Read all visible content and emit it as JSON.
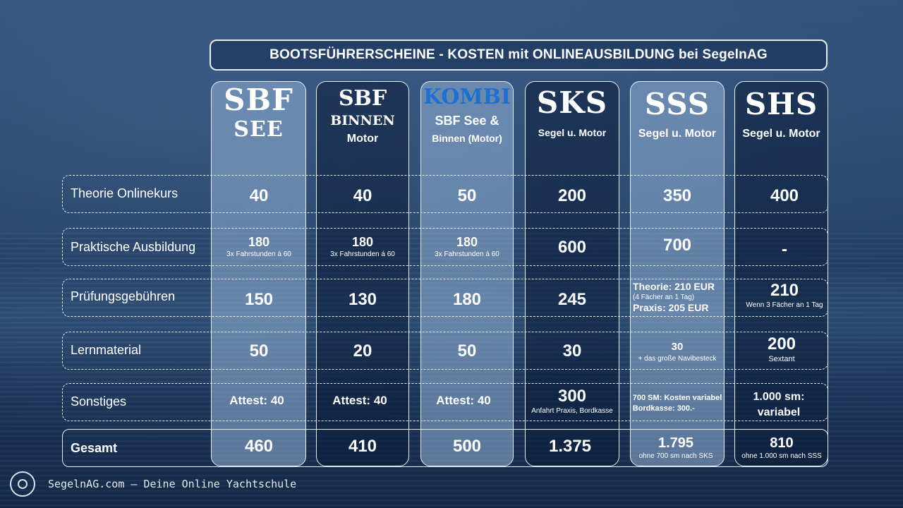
{
  "title": "BOOTSFÜHRERSCHEINE  - KOSTEN mit ONLINEAUSBILDUNG bei SegelnAG",
  "columns": [
    {
      "line1": "SBF",
      "line2": "SEE",
      "line3": ""
    },
    {
      "line1": "SBF",
      "line2": "BINNEN",
      "line3": "Motor"
    },
    {
      "line1": "KOMBI",
      "line2": "SBF See &",
      "line3": "Binnen (Motor)"
    },
    {
      "line1": "SKS",
      "line2": "Segel u. Motor",
      "line3": ""
    },
    {
      "line1": "SSS",
      "line2": "Segel u. Motor",
      "line3": ""
    },
    {
      "line1": "SHS",
      "line2": "Segel u. Motor",
      "line3": ""
    }
  ],
  "rows": [
    {
      "label": "Theorie Onlinekurs",
      "cells": [
        {
          "value": "40",
          "note": ""
        },
        {
          "value": "40",
          "note": ""
        },
        {
          "value": "50",
          "note": ""
        },
        {
          "value": "200",
          "note": ""
        },
        {
          "value": "350",
          "note": ""
        },
        {
          "value": "400",
          "note": ""
        }
      ]
    },
    {
      "label": "Praktische Ausbildung",
      "cells": [
        {
          "value": "180",
          "note": "3x Fahrstunden á 60"
        },
        {
          "value": "180",
          "note": "3x Fahrstunden á 60"
        },
        {
          "value": "180",
          "note": "3x Fahrstunden á 60"
        },
        {
          "value": "600",
          "note": ""
        },
        {
          "value": "700",
          "note": ""
        },
        {
          "value": "-",
          "note": ""
        }
      ]
    },
    {
      "label": "Prüfungsgebühren",
      "cells": [
        {
          "value": "150",
          "note": ""
        },
        {
          "value": "130",
          "note": ""
        },
        {
          "value": "180",
          "note": ""
        },
        {
          "value": "245",
          "note": ""
        },
        {
          "value": "Theorie: 210 EUR",
          "note": "(4 Fächer an 1 Tag)",
          "value2": "Praxis: 205 EUR"
        },
        {
          "value": "210",
          "note": "Wenn 3 Fächer an 1 Tag"
        }
      ]
    },
    {
      "label": "Lernmaterial",
      "cells": [
        {
          "value": "50",
          "note": ""
        },
        {
          "value": "20",
          "note": ""
        },
        {
          "value": "50",
          "note": ""
        },
        {
          "value": "30",
          "note": ""
        },
        {
          "value": "30",
          "note": "+ das große Navibesteck"
        },
        {
          "value": "200",
          "note": "Sextant"
        }
      ]
    },
    {
      "label": "Sonstiges",
      "cells": [
        {
          "value": "Attest: 40",
          "note": ""
        },
        {
          "value": "Attest: 40",
          "note": ""
        },
        {
          "value": "Attest: 40",
          "note": ""
        },
        {
          "value": "300",
          "note": "Anfahrt Praxis, Bordkasse"
        },
        {
          "value": "700 SM: Kosten variabel",
          "note": "",
          "value2": "Bordkasse: 300.-"
        },
        {
          "value": "1.000 sm:",
          "note": "",
          "value2": "variabel"
        }
      ]
    },
    {
      "label": "Gesamt",
      "cells": [
        {
          "value": "460",
          "note": ""
        },
        {
          "value": "410",
          "note": ""
        },
        {
          "value": "500",
          "note": ""
        },
        {
          "value": "1.375",
          "note": ""
        },
        {
          "value": "1.795",
          "note": "ohne 700 sm nach SKS"
        },
        {
          "value": "810",
          "note": "ohne 1.000 sm nach SSS"
        }
      ]
    }
  ],
  "footer": "SegelnAG.com  – Deine Online Yachtschule",
  "colors": {
    "kombi": "#1f6fd1",
    "highlight_column": "#96b4d7"
  }
}
